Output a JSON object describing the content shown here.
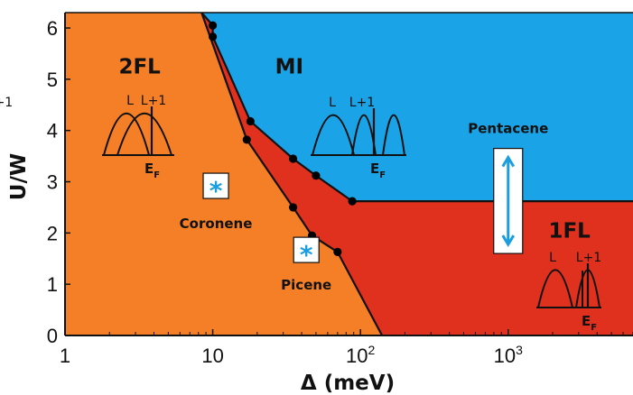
{
  "chart_data": {
    "type": "area",
    "title": "",
    "xlabel": "Δ (meV)",
    "ylabel": "U/W",
    "x_scale": "log",
    "xlim": [
      1,
      7000
    ],
    "ylim": [
      0,
      6.3
    ],
    "x_tick_labels": [
      {
        "value": 1,
        "label": "1"
      },
      {
        "value": 10,
        "label": "10"
      },
      {
        "value": 100,
        "label": "10",
        "exp": "2"
      },
      {
        "value": 1000,
        "label": "10",
        "exp": "3"
      }
    ],
    "y_ticks": [
      0,
      1,
      2,
      3,
      4,
      5,
      6
    ],
    "grid": false,
    "colors": {
      "2FL": "#f57f26",
      "MI": "#1aa3e6",
      "1FL": "#e0301e",
      "marker": "#000000",
      "star": "#1a9ee0"
    },
    "regions": [
      {
        "name": "2FL",
        "label_x": 3.2,
        "label_y": 5.25
      },
      {
        "name": "MI",
        "label_x": 33,
        "label_y": 5.25
      },
      {
        "name": "1FL",
        "label_x": 2600,
        "label_y": 2.05
      }
    ],
    "boundaries": {
      "upper": [
        {
          "x": 8.4,
          "y": 6.3
        },
        {
          "x": 10,
          "y": 6.05
        },
        {
          "x": 10,
          "y": 5.83
        },
        {
          "x": 18,
          "y": 4.18
        },
        {
          "x": 35,
          "y": 3.45
        },
        {
          "x": 50,
          "y": 3.12
        },
        {
          "x": 88,
          "y": 2.62
        },
        {
          "x": 7000,
          "y": 2.62
        }
      ],
      "lower": [
        {
          "x": 8.4,
          "y": 6.3
        },
        {
          "x": 17,
          "y": 3.82
        },
        {
          "x": 35,
          "y": 2.5
        },
        {
          "x": 47,
          "y": 1.95
        },
        {
          "x": 70,
          "y": 1.63
        },
        {
          "x": 140,
          "y": 0
        }
      ]
    },
    "points": [
      {
        "x": 10,
        "y": 6.05
      },
      {
        "x": 10,
        "y": 5.83
      },
      {
        "x": 18,
        "y": 4.18
      },
      {
        "x": 35,
        "y": 3.45
      },
      {
        "x": 50,
        "y": 3.12
      },
      {
        "x": 88,
        "y": 2.62
      },
      {
        "x": 17,
        "y": 3.82
      },
      {
        "x": 35,
        "y": 2.5
      },
      {
        "x": 47,
        "y": 1.95
      },
      {
        "x": 70,
        "y": 1.63
      }
    ],
    "materials": [
      {
        "name": "Coronene",
        "marker": "*",
        "x": 10.5,
        "y": 2.92,
        "label_x": 10.5,
        "label_y": 2.2
      },
      {
        "name": "Picene",
        "marker": "*",
        "x": 43,
        "y": 1.67,
        "label_x": 43,
        "label_y": 1.0
      },
      {
        "name": "Pentacene",
        "marker": "double-arrow",
        "x": 1000,
        "y_range": [
          1.6,
          3.65
        ],
        "label_x": 1000,
        "label_y": 3.95
      }
    ],
    "band_insets": [
      {
        "region": "2FL",
        "labels": [
          "L",
          "L+1"
        ],
        "fermi": "E",
        "fermi_sub": "F"
      },
      {
        "region": "MI",
        "labels": [
          "L",
          "L+1",
          "L+1"
        ],
        "fermi": "E",
        "fermi_sub": "F"
      },
      {
        "region": "1FL",
        "labels": [
          "L",
          "L+1"
        ],
        "fermi": "E",
        "fermi_sub": "F"
      }
    ]
  }
}
